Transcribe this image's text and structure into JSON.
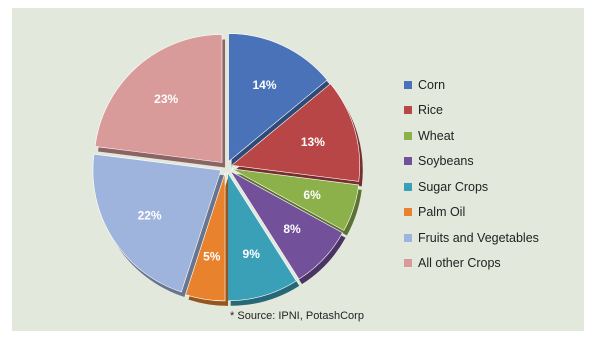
{
  "chart_data": {
    "type": "pie",
    "title": "",
    "slices": [
      {
        "label": "Corn",
        "value": 14,
        "value_label": "14%",
        "color": "#4a72b8"
      },
      {
        "label": "Rice",
        "value": 13,
        "value_label": "13%",
        "color": "#b84646"
      },
      {
        "label": "Wheat",
        "value": 6,
        "value_label": "6%",
        "color": "#8cb04a"
      },
      {
        "label": "Soybeans",
        "value": 8,
        "value_label": "8%",
        "color": "#72509a"
      },
      {
        "label": "Sugar Crops",
        "value": 9,
        "value_label": "9%",
        "color": "#3aa0b8"
      },
      {
        "label": "Palm Oil",
        "value": 5,
        "value_label": "5%",
        "color": "#e8822c"
      },
      {
        "label": "Fruits and Vegetables",
        "value": 22,
        "value_label": "22%",
        "color": "#9fb4dc"
      },
      {
        "label": "All other Crops",
        "value": 23,
        "value_label": "23%",
        "color": "#d99a9a"
      }
    ],
    "legend": {
      "position": "right"
    },
    "exploded": true
  },
  "source_note": "* Source: IPNI, PotashCorp"
}
